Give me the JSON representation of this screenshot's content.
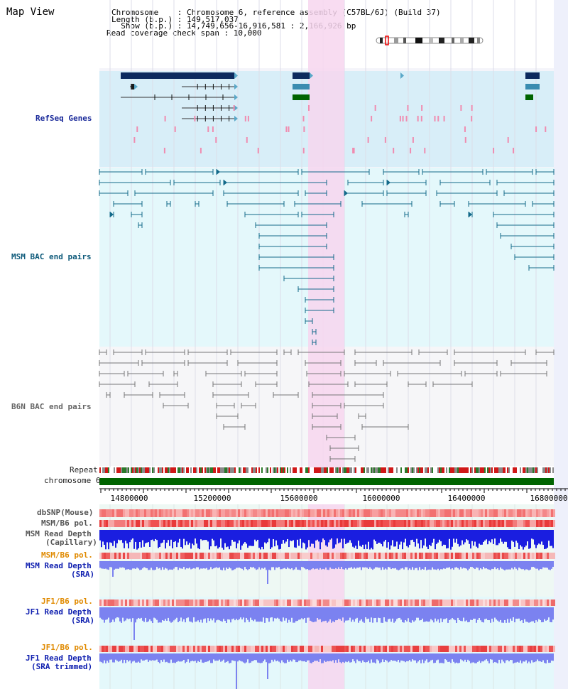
{
  "header": {
    "map_title": "Map View",
    "chromosome_line": "Chromosome    : Chromosome 6, reference assembly (C57BL/6J) (Build 37)",
    "length_line": "Length (b.p.) : 149,517,037",
    "show_line": "  Show (b.p.) : 14,749,656-16,916,581 : 2,166,926 bp",
    "span_line": "Read coverage check span : 10,000"
  },
  "tracks": {
    "refseq": "RefSeq Genes",
    "msm_bac": "MSM BAC end pairs",
    "b6n_bac": "B6N BAC end pairs",
    "repeat": "Repeat",
    "chromosome": "chromosome 6",
    "dbsnp": "dbSNP(Mouse)",
    "msm_b6_pol_1": "MSM/B6 pol.",
    "msm_depth_cap_1": "MSM Read Depth",
    "msm_depth_cap_2": "(Capillary)",
    "msm_b6_pol_2": "MSM/B6 pol.",
    "msm_depth_sra_1": "MSM Read Depth",
    "msm_depth_sra_2": "(SRA)",
    "jf1_b6_pol_1": "JF1/B6 pol.",
    "jf1_depth_1": "JF1 Read Depth",
    "jf1_depth_2": "(SRA)",
    "jf1_b6_pol_2": "JF1/B6 pol.",
    "jf1_trim_1": "JF1 Read Depth",
    "jf1_trim_2": "(SRA trimmed)"
  },
  "axis": {
    "ticks": [
      "14800000",
      "15200000",
      "15600000",
      "16000000",
      "16400000",
      "16800000"
    ]
  },
  "colors": {
    "refseq_bg": "#d8eef8",
    "bac_bg": "#e4f8fb",
    "highlight": "#f7d6ef",
    "gene_navy": "#0d2a5e",
    "gene_teal": "#3a8cb0",
    "gene_green": "#006400",
    "msm_bac": "#136a8a",
    "b6n_bac": "#777777",
    "chromosome_bar": "#006400",
    "depth_dark_blue": "#1a1ee0",
    "depth_light_blue": "#7b82f0"
  }
}
